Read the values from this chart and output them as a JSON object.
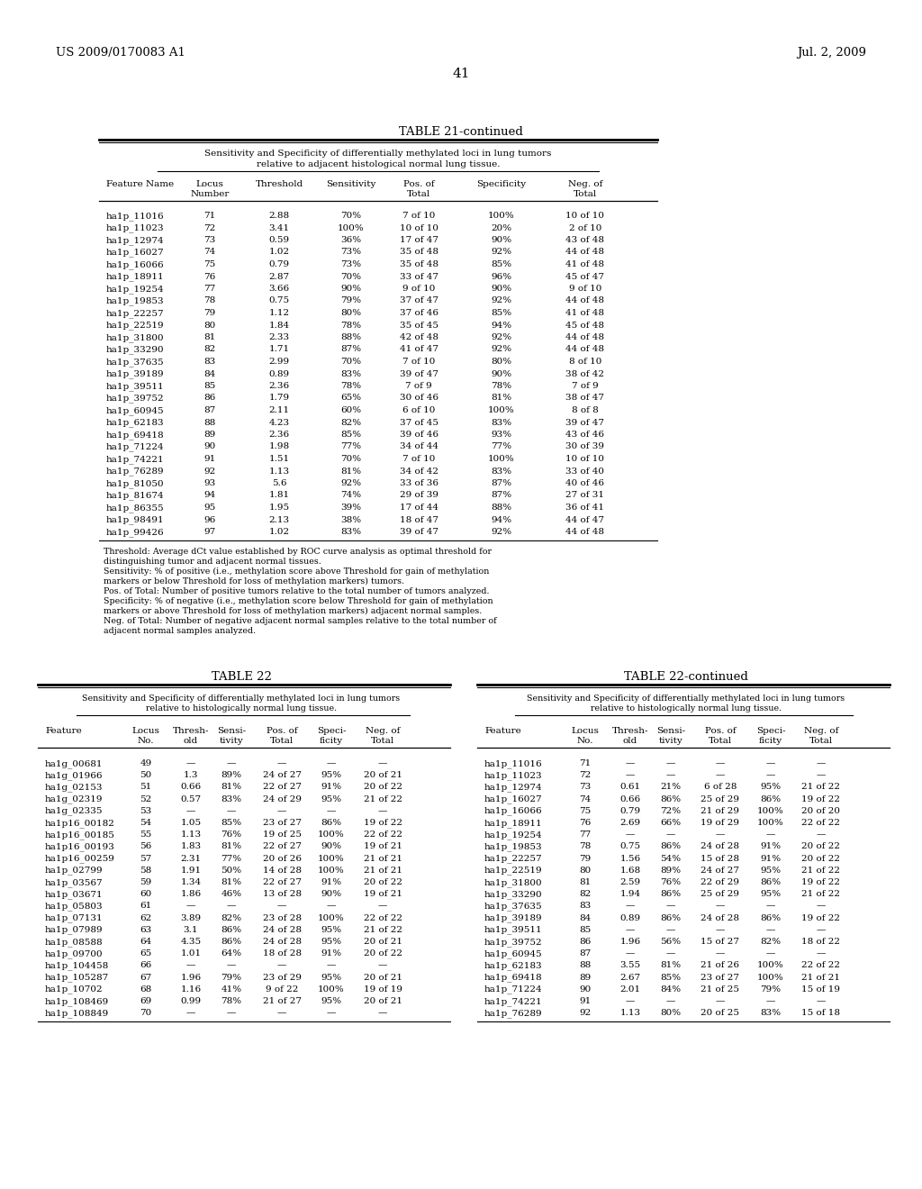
{
  "page_header_left": "US 2009/0170083 A1",
  "page_header_right": "Jul. 2, 2009",
  "page_number": "41",
  "table21_title": "TABLE 21-continued",
  "table21_subtitle1": "Sensitivity and Specificity of differentially methylated loci in lung tumors",
  "table21_subtitle2": "relative to adjacent histological normal lung tissue.",
  "table21_data": [
    [
      "ha1p_11016",
      "71",
      "2.88",
      "70%",
      "7 of 10",
      "100%",
      "10 of 10"
    ],
    [
      "ha1p_11023",
      "72",
      "3.41",
      "100%",
      "10 of 10",
      "20%",
      "2 of 10"
    ],
    [
      "ha1p_12974",
      "73",
      "0.59",
      "36%",
      "17 of 47",
      "90%",
      "43 of 48"
    ],
    [
      "ha1p_16027",
      "74",
      "1.02",
      "73%",
      "35 of 48",
      "92%",
      "44 of 48"
    ],
    [
      "ha1p_16066",
      "75",
      "0.79",
      "73%",
      "35 of 48",
      "85%",
      "41 of 48"
    ],
    [
      "ha1p_18911",
      "76",
      "2.87",
      "70%",
      "33 of 47",
      "96%",
      "45 of 47"
    ],
    [
      "ha1p_19254",
      "77",
      "3.66",
      "90%",
      "9 of 10",
      "90%",
      "9 of 10"
    ],
    [
      "ha1p_19853",
      "78",
      "0.75",
      "79%",
      "37 of 47",
      "92%",
      "44 of 48"
    ],
    [
      "ha1p_22257",
      "79",
      "1.12",
      "80%",
      "37 of 46",
      "85%",
      "41 of 48"
    ],
    [
      "ha1p_22519",
      "80",
      "1.84",
      "78%",
      "35 of 45",
      "94%",
      "45 of 48"
    ],
    [
      "ha1p_31800",
      "81",
      "2.33",
      "88%",
      "42 of 48",
      "92%",
      "44 of 48"
    ],
    [
      "ha1p_33290",
      "82",
      "1.71",
      "87%",
      "41 of 47",
      "92%",
      "44 of 48"
    ],
    [
      "ha1p_37635",
      "83",
      "2.99",
      "70%",
      "7 of 10",
      "80%",
      "8 of 10"
    ],
    [
      "ha1p_39189",
      "84",
      "0.89",
      "83%",
      "39 of 47",
      "90%",
      "38 of 42"
    ],
    [
      "ha1p_39511",
      "85",
      "2.36",
      "78%",
      "7 of 9",
      "78%",
      "7 of 9"
    ],
    [
      "ha1p_39752",
      "86",
      "1.79",
      "65%",
      "30 of 46",
      "81%",
      "38 of 47"
    ],
    [
      "ha1p_60945",
      "87",
      "2.11",
      "60%",
      "6 of 10",
      "100%",
      "8 of 8"
    ],
    [
      "ha1p_62183",
      "88",
      "4.23",
      "82%",
      "37 of 45",
      "83%",
      "39 of 47"
    ],
    [
      "ha1p_69418",
      "89",
      "2.36",
      "85%",
      "39 of 46",
      "93%",
      "43 of 46"
    ],
    [
      "ha1p_71224",
      "90",
      "1.98",
      "77%",
      "34 of 44",
      "77%",
      "30 of 39"
    ],
    [
      "ha1p_74221",
      "91",
      "1.51",
      "70%",
      "7 of 10",
      "100%",
      "10 of 10"
    ],
    [
      "ha1p_76289",
      "92",
      "1.13",
      "81%",
      "34 of 42",
      "83%",
      "33 of 40"
    ],
    [
      "ha1p_81050",
      "93",
      "5.6",
      "92%",
      "33 of 36",
      "87%",
      "40 of 46"
    ],
    [
      "ha1p_81674",
      "94",
      "1.81",
      "74%",
      "29 of 39",
      "87%",
      "27 of 31"
    ],
    [
      "ha1p_86355",
      "95",
      "1.95",
      "39%",
      "17 of 44",
      "88%",
      "36 of 41"
    ],
    [
      "ha1p_98491",
      "96",
      "2.13",
      "38%",
      "18 of 47",
      "94%",
      "44 of 47"
    ],
    [
      "ha1p_99426",
      "97",
      "1.02",
      "83%",
      "39 of 47",
      "92%",
      "44 of 48"
    ]
  ],
  "table21_footnote": [
    "Threshold: Average dCt value established by ROC curve analysis as optimal threshold for",
    "distinguishing tumor and adjacent normal tissues.",
    "Sensitivity: % of positive (i.e., methylation score above Threshold for gain of methylation",
    "markers or below Threshold for loss of methylation markers) tumors.",
    "Pos. of Total: Number of positive tumors relative to the total number of tumors analyzed.",
    "Specificity: % of negative (i.e., methylation score below Threshold for gain of methylation",
    "markers or above Threshold for loss of methylation markers) adjacent normal samples.",
    "Neg. of Total: Number of negative adjacent normal samples relative to the total number of",
    "adjacent normal samples analyzed."
  ],
  "table22_title": "TABLE 22",
  "table22_subtitle1": "Sensitivity and Specificity of differentially methylated loci in lung tumors",
  "table22_subtitle2": "relative to histologically normal lung tissue.",
  "table22_data": [
    [
      "ha1g_00681",
      "49",
      "—",
      "—",
      "—",
      "—",
      "—"
    ],
    [
      "ha1g_01966",
      "50",
      "1.3",
      "89%",
      "24 of 27",
      "95%",
      "20 of 21"
    ],
    [
      "ha1g_02153",
      "51",
      "0.66",
      "81%",
      "22 of 27",
      "91%",
      "20 of 22"
    ],
    [
      "ha1g_02319",
      "52",
      "0.57",
      "83%",
      "24 of 29",
      "95%",
      "21 of 22"
    ],
    [
      "ha1g_02335",
      "53",
      "—",
      "—",
      "—",
      "—",
      "—"
    ],
    [
      "ha1p16_00182",
      "54",
      "1.05",
      "85%",
      "23 of 27",
      "86%",
      "19 of 22"
    ],
    [
      "ha1p16_00185",
      "55",
      "1.13",
      "76%",
      "19 of 25",
      "100%",
      "22 of 22"
    ],
    [
      "ha1p16_00193",
      "56",
      "1.83",
      "81%",
      "22 of 27",
      "90%",
      "19 of 21"
    ],
    [
      "ha1p16_00259",
      "57",
      "2.31",
      "77%",
      "20 of 26",
      "100%",
      "21 of 21"
    ],
    [
      "ha1p_02799",
      "58",
      "1.91",
      "50%",
      "14 of 28",
      "100%",
      "21 of 21"
    ],
    [
      "ha1p_03567",
      "59",
      "1.34",
      "81%",
      "22 of 27",
      "91%",
      "20 of 22"
    ],
    [
      "ha1p_03671",
      "60",
      "1.86",
      "46%",
      "13 of 28",
      "90%",
      "19 of 21"
    ],
    [
      "ha1p_05803",
      "61",
      "—",
      "—",
      "—",
      "—",
      "—"
    ],
    [
      "ha1p_07131",
      "62",
      "3.89",
      "82%",
      "23 of 28",
      "100%",
      "22 of 22"
    ],
    [
      "ha1p_07989",
      "63",
      "3.1",
      "86%",
      "24 of 28",
      "95%",
      "21 of 22"
    ],
    [
      "ha1p_08588",
      "64",
      "4.35",
      "86%",
      "24 of 28",
      "95%",
      "20 of 21"
    ],
    [
      "ha1p_09700",
      "65",
      "1.01",
      "64%",
      "18 of 28",
      "91%",
      "20 of 22"
    ],
    [
      "ha1p_104458",
      "66",
      "—",
      "—",
      "—",
      "—",
      "—"
    ],
    [
      "ha1p_105287",
      "67",
      "1.96",
      "79%",
      "23 of 29",
      "95%",
      "20 of 21"
    ],
    [
      "ha1p_10702",
      "68",
      "1.16",
      "41%",
      "9 of 22",
      "100%",
      "19 of 19"
    ],
    [
      "ha1p_108469",
      "69",
      "0.99",
      "78%",
      "21 of 27",
      "95%",
      "20 of 21"
    ],
    [
      "ha1p_108849",
      "70",
      "—",
      "—",
      "—",
      "—",
      "—"
    ]
  ],
  "table22c_title": "TABLE 22-continued",
  "table22c_subtitle1": "Sensitivity and Specificity of differentially methylated loci in lung tumors",
  "table22c_subtitle2": "relative to histologically normal lung tissue.",
  "table22c_data": [
    [
      "ha1p_11016",
      "71",
      "—",
      "—",
      "—",
      "—",
      "—"
    ],
    [
      "ha1p_11023",
      "72",
      "—",
      "—",
      "—",
      "—",
      "—"
    ],
    [
      "ha1p_12974",
      "73",
      "0.61",
      "21%",
      "6 of 28",
      "95%",
      "21 of 22"
    ],
    [
      "ha1p_16027",
      "74",
      "0.66",
      "86%",
      "25 of 29",
      "86%",
      "19 of 22"
    ],
    [
      "ha1p_16066",
      "75",
      "0.79",
      "72%",
      "21 of 29",
      "100%",
      "20 of 20"
    ],
    [
      "ha1p_18911",
      "76",
      "2.69",
      "66%",
      "19 of 29",
      "100%",
      "22 of 22"
    ],
    [
      "ha1p_19254",
      "77",
      "—",
      "—",
      "—",
      "—",
      "—"
    ],
    [
      "ha1p_19853",
      "78",
      "0.75",
      "86%",
      "24 of 28",
      "91%",
      "20 of 22"
    ],
    [
      "ha1p_22257",
      "79",
      "1.56",
      "54%",
      "15 of 28",
      "91%",
      "20 of 22"
    ],
    [
      "ha1p_22519",
      "80",
      "1.68",
      "89%",
      "24 of 27",
      "95%",
      "21 of 22"
    ],
    [
      "ha1p_31800",
      "81",
      "2.59",
      "76%",
      "22 of 29",
      "86%",
      "19 of 22"
    ],
    [
      "ha1p_33290",
      "82",
      "1.94",
      "86%",
      "25 of 29",
      "95%",
      "21 of 22"
    ],
    [
      "ha1p_37635",
      "83",
      "—",
      "—",
      "—",
      "—",
      "—"
    ],
    [
      "ha1p_39189",
      "84",
      "0.89",
      "86%",
      "24 of 28",
      "86%",
      "19 of 22"
    ],
    [
      "ha1p_39511",
      "85",
      "—",
      "—",
      "—",
      "—",
      "—"
    ],
    [
      "ha1p_39752",
      "86",
      "1.96",
      "56%",
      "15 of 27",
      "82%",
      "18 of 22"
    ],
    [
      "ha1p_60945",
      "87",
      "—",
      "—",
      "—",
      "—",
      "—"
    ],
    [
      "ha1p_62183",
      "88",
      "3.55",
      "81%",
      "21 of 26",
      "100%",
      "22 of 22"
    ],
    [
      "ha1p_69418",
      "89",
      "2.67",
      "85%",
      "23 of 27",
      "100%",
      "21 of 21"
    ],
    [
      "ha1p_71224",
      "90",
      "2.01",
      "84%",
      "21 of 25",
      "79%",
      "15 of 19"
    ],
    [
      "ha1p_74221",
      "91",
      "—",
      "—",
      "—",
      "—",
      "—"
    ],
    [
      "ha1p_76289",
      "92",
      "1.13",
      "80%",
      "20 of 25",
      "83%",
      "15 of 18"
    ]
  ],
  "bg_color": "#ffffff",
  "text_color": "#000000"
}
